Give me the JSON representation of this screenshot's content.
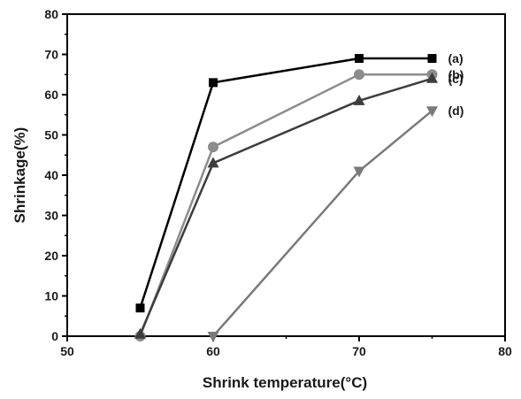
{
  "chart_data": {
    "type": "line",
    "xlabel": "Shrink temperature(°C)",
    "ylabel": "Shrinkage(%)",
    "xlim": [
      50,
      80
    ],
    "ylim": [
      0,
      80
    ],
    "xticks": [
      50,
      60,
      70,
      80
    ],
    "yticks": [
      0,
      10,
      20,
      30,
      40,
      50,
      60,
      70,
      80
    ],
    "grid": false,
    "x": [
      55,
      60,
      70,
      75
    ],
    "series": [
      {
        "name": "(a)",
        "values": [
          7,
          63,
          69,
          69
        ],
        "color": "#000000",
        "marker": "square"
      },
      {
        "name": "(b)",
        "values": [
          0,
          47,
          65,
          65
        ],
        "color": "#8c8c8c",
        "marker": "circle"
      },
      {
        "name": "(c)",
        "values": [
          0.5,
          43,
          58.5,
          64
        ],
        "color": "#3d3d3d",
        "marker": "triangle-up"
      },
      {
        "name": "(d)",
        "values": [
          null,
          0,
          41,
          56
        ],
        "color": "#7a7a7a",
        "marker": "triangle-down"
      }
    ]
  }
}
